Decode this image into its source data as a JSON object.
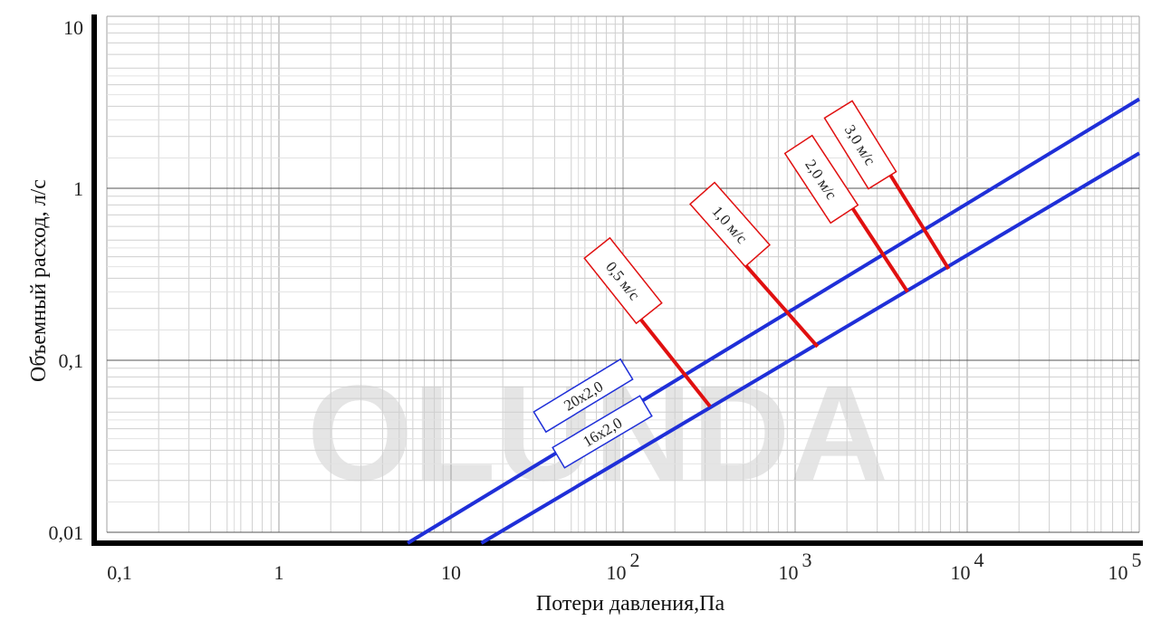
{
  "chart_data": {
    "type": "line",
    "xscale": "log",
    "yscale": "log",
    "xlabel": "Потери давления,Па",
    "ylabel": "Объемный расход, л/с",
    "xlim": [
      0.1,
      100000
    ],
    "ylim": [
      0.01,
      10
    ],
    "grid": true,
    "x_ticks": [
      {
        "value": 0.1,
        "base": "0,1",
        "exp": ""
      },
      {
        "value": 1,
        "base": "1",
        "exp": ""
      },
      {
        "value": 10,
        "base": "10",
        "exp": ""
      },
      {
        "value": 100,
        "base": "10",
        "exp": "2"
      },
      {
        "value": 1000,
        "base": "10",
        "exp": "3"
      },
      {
        "value": 10000,
        "base": "10",
        "exp": "4"
      },
      {
        "value": 100000,
        "base": "10",
        "exp": "5"
      }
    ],
    "y_ticks": [
      {
        "value": 0.01,
        "label": "0,01"
      },
      {
        "value": 0.1,
        "label": "0,1"
      },
      {
        "value": 1,
        "label": "1"
      },
      {
        "value": 10,
        "label": "10"
      }
    ],
    "series": [
      {
        "name": "20x2,0",
        "color": "#1f2fd8",
        "x": [
          5.6,
          100000
        ],
        "y": [
          0.01,
          3.3
        ]
      },
      {
        "name": "16x2,0",
        "color": "#1f2fd8",
        "x": [
          15,
          100000
        ],
        "y": [
          0.01,
          1.6
        ]
      }
    ],
    "velocity_markers": [
      {
        "label": "0,5 м/с",
        "color": "#e01010",
        "x1": 215,
        "y1": 0.089,
        "x2": 320,
        "y2": 0.054
      },
      {
        "label": "1,0 м/с",
        "color": "#e01010",
        "x1": 860,
        "y1": 0.2,
        "x2": 1350,
        "y2": 0.12
      },
      {
        "label": "2,0 м/с",
        "color": "#e01010",
        "x1": 3200,
        "y1": 0.42,
        "x2": 4500,
        "y2": 0.25
      },
      {
        "label": "3,0 м/с",
        "color": "#e01010",
        "x1": 5600,
        "y1": 0.58,
        "x2": 7800,
        "y2": 0.34
      }
    ],
    "watermark": "OLUNDA"
  }
}
